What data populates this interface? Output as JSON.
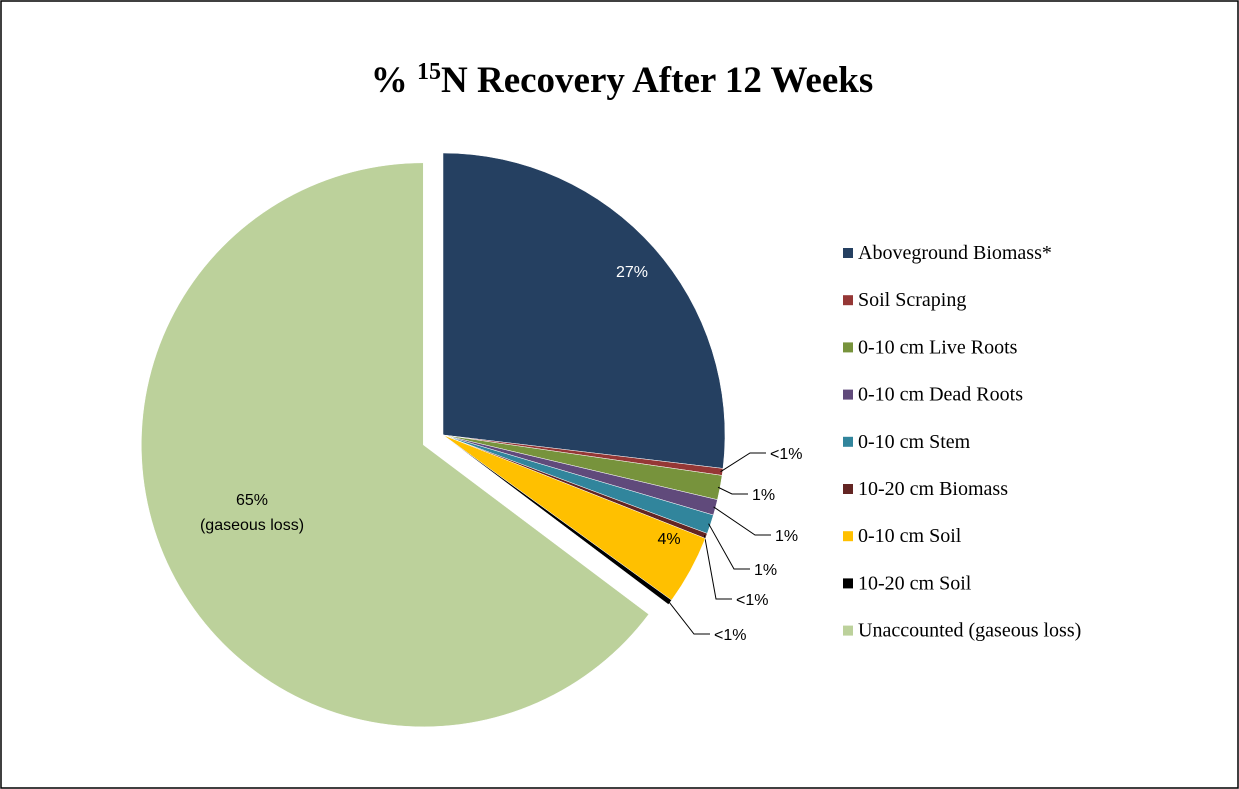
{
  "chart_data": {
    "type": "pie",
    "title": {
      "prefix": "% ",
      "superscript": "15",
      "text": "N Recovery After 12 Weeks"
    },
    "categories": [
      "Aboveground Biomass*",
      "Soil Scraping",
      "0-10 cm Live Roots",
      "0-10 cm Dead Roots",
      "0-10 cm Stem",
      "10-20 cm Biomass",
      "0-10 cm Soil",
      "10-20 cm Soil",
      "Unaccounted (gaseous loss)"
    ],
    "values": [
      27,
      0.4,
      1.4,
      0.9,
      1.1,
      0.3,
      4,
      0.3,
      65
    ],
    "value_labels": [
      "27%",
      "<1%",
      "1%",
      "1%",
      "1%",
      "<1%",
      "4%",
      "<1%",
      "65%"
    ],
    "annotations": [
      {
        "text": "(gaseous loss)"
      }
    ],
    "colors": [
      "#254061",
      "#953735",
      "#77933c",
      "#604a7b",
      "#31859c",
      "#632523",
      "#ffc000",
      "#000000",
      "#bcd19b"
    ],
    "legend": "right"
  }
}
